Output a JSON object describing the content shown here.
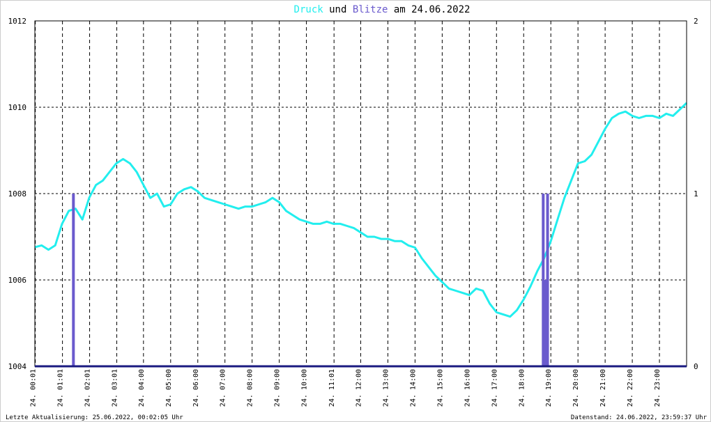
{
  "chart_data": {
    "type": "line",
    "title_joiner": "und",
    "title_date": "am 24.06.2022",
    "xlim": [
      0,
      24
    ],
    "xticks": [
      {
        "value": 0.0167,
        "label": "24. 00:01"
      },
      {
        "value": 1.0167,
        "label": "24. 01:01"
      },
      {
        "value": 2.0167,
        "label": "24. 02:01"
      },
      {
        "value": 3.0167,
        "label": "24. 03:01"
      },
      {
        "value": 4,
        "label": "24. 04:00"
      },
      {
        "value": 5,
        "label": "24. 05:00"
      },
      {
        "value": 6,
        "label": "24. 06:00"
      },
      {
        "value": 7,
        "label": "24. 07:00"
      },
      {
        "value": 8,
        "label": "24. 08:00"
      },
      {
        "value": 9,
        "label": "24. 09:00"
      },
      {
        "value": 10,
        "label": "24. 10:00"
      },
      {
        "value": 11.0167,
        "label": "24. 11:01"
      },
      {
        "value": 12,
        "label": "24. 12:00"
      },
      {
        "value": 13,
        "label": "24. 13:00"
      },
      {
        "value": 14,
        "label": "24. 14:00"
      },
      {
        "value": 15,
        "label": "24. 15:00"
      },
      {
        "value": 16,
        "label": "24. 16:00"
      },
      {
        "value": 17,
        "label": "24. 17:00"
      },
      {
        "value": 18,
        "label": "24. 18:00"
      },
      {
        "value": 19,
        "label": "24. 19:00"
      },
      {
        "value": 20,
        "label": "24. 20:00"
      },
      {
        "value": 21,
        "label": "24. 21:00"
      },
      {
        "value": 22,
        "label": "24. 22:00"
      },
      {
        "value": 23,
        "label": "24. 23:00"
      }
    ],
    "ylim": [
      1004,
      1012
    ],
    "yticks": [
      1004,
      1006,
      1008,
      1010,
      1012
    ],
    "y2lim": [
      0,
      2
    ],
    "y2ticks": [
      0,
      1,
      2
    ],
    "grid": true,
    "series": [
      {
        "name": "Druck",
        "color": "#22eeee",
        "x": [
          0,
          0.25,
          0.5,
          0.75,
          1,
          1.25,
          1.5,
          1.75,
          2,
          2.25,
          2.5,
          2.75,
          3,
          3.25,
          3.5,
          3.75,
          4,
          4.25,
          4.5,
          4.75,
          5,
          5.25,
          5.5,
          5.75,
          6,
          6.25,
          6.5,
          6.75,
          7,
          7.25,
          7.5,
          7.75,
          8,
          8.25,
          8.5,
          8.75,
          9,
          9.25,
          9.5,
          9.75,
          10,
          10.25,
          10.5,
          10.75,
          11,
          11.25,
          11.5,
          11.75,
          12,
          12.25,
          12.5,
          12.75,
          13,
          13.25,
          13.5,
          13.75,
          14,
          14.25,
          14.5,
          14.75,
          15,
          15.25,
          15.5,
          15.75,
          16,
          16.25,
          16.5,
          16.75,
          17,
          17.25,
          17.5,
          17.75,
          18,
          18.25,
          18.5,
          18.75,
          19,
          19.25,
          19.5,
          19.75,
          20,
          20.25,
          20.5,
          20.75,
          21,
          21.25,
          21.5,
          21.75,
          22,
          22.25,
          22.5,
          22.75,
          23,
          23.25,
          23.5,
          23.75,
          24
        ],
        "values": [
          1006.76,
          1006.8,
          1006.7,
          1006.8,
          1007.3,
          1007.6,
          1007.65,
          1007.4,
          1007.9,
          1008.2,
          1008.3,
          1008.5,
          1008.7,
          1008.8,
          1008.7,
          1008.5,
          1008.2,
          1007.9,
          1008.0,
          1007.7,
          1007.75,
          1008.0,
          1008.1,
          1008.15,
          1008.05,
          1007.9,
          1007.85,
          1007.8,
          1007.75,
          1007.7,
          1007.65,
          1007.7,
          1007.7,
          1007.75,
          1007.8,
          1007.9,
          1007.8,
          1007.6,
          1007.5,
          1007.4,
          1007.35,
          1007.3,
          1007.3,
          1007.35,
          1007.3,
          1007.3,
          1007.25,
          1007.2,
          1007.1,
          1007.0,
          1007.0,
          1006.95,
          1006.95,
          1006.9,
          1006.9,
          1006.8,
          1006.75,
          1006.5,
          1006.3,
          1006.1,
          1005.95,
          1005.8,
          1005.75,
          1005.7,
          1005.65,
          1005.8,
          1005.75,
          1005.45,
          1005.25,
          1005.2,
          1005.15,
          1005.3,
          1005.55,
          1005.85,
          1006.2,
          1006.5,
          1006.9,
          1007.4,
          1007.9,
          1008.3,
          1008.7,
          1008.75,
          1008.9,
          1009.2,
          1009.5,
          1009.75,
          1009.85,
          1009.9,
          1009.8,
          1009.75,
          1009.8,
          1009.8,
          1009.75,
          1009.85,
          1009.8,
          1009.95,
          1010.1
        ]
      },
      {
        "name": "Blitze",
        "color": "#6a5acd",
        "type": "bar",
        "axis": "y2",
        "x": [
          1.42,
          18.72,
          18.8,
          18.88
        ],
        "values": [
          1,
          1,
          0.5,
          1
        ]
      }
    ],
    "footer_left": "Letzte Aktualisierung: 25.06.2022, 00:02:05 Uhr",
    "footer_right": "Datenstand: 24.06.2022, 23:59:37 Uhr"
  }
}
